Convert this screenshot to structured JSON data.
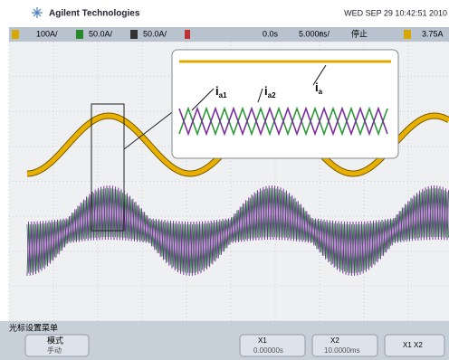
{
  "header": {
    "brand": "Agilent Technologies",
    "datetime": "WED SEP 29 10:42:51 2010"
  },
  "channel_bar": {
    "ch1": "100A/",
    "ch2": "50.0A/",
    "ch3": "50.0A/",
    "delay": "0.0s",
    "timebase": "5.000㎳/",
    "state": "停止",
    "trigger_level": "3.75A"
  },
  "annotations": [
    {
      "letter": "i",
      "sub": "a1"
    },
    {
      "letter": "i",
      "sub": "a2"
    },
    {
      "letter": "i",
      "sub": "a"
    }
  ],
  "menu": {
    "title": "光标设置菜单",
    "mode_label": "模式",
    "mode_value": "手动",
    "x1_label": "X1",
    "x1_value": "0.00000s",
    "x2_label": "X2",
    "x2_value": "10.0000ms",
    "x1x2_label": "X1 X2"
  }
}
